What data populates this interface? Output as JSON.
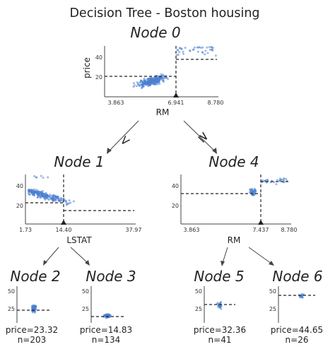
{
  "title": "Decision Tree - Boston housing",
  "edges": {
    "left_label": "<",
    "right_label": "≥"
  },
  "colors": {
    "points": "#4a7fcf",
    "text": "#222222",
    "axis": "#444444"
  },
  "nodes": {
    "n0": {
      "title": "Node 0",
      "feature": "RM",
      "target": "price",
      "x_ticks": [
        "3.863",
        "6.941",
        "8.780"
      ],
      "y_ticks": [
        "20",
        "40"
      ],
      "split_value": 6.941,
      "x_range": [
        3.863,
        8.78
      ],
      "y_range": [
        5,
        50
      ],
      "mean_left": 20,
      "mean_right": 37
    },
    "n1": {
      "title": "Node 1",
      "feature": "LSTAT",
      "x_ticks": [
        "1.73",
        "14.40",
        "37.97"
      ],
      "y_ticks": [
        "20",
        "40"
      ],
      "split_value": 14.4,
      "x_range": [
        1.73,
        37.97
      ],
      "y_range": [
        5,
        50
      ],
      "mean_left": 23,
      "mean_right": 14.8
    },
    "n4": {
      "title": "Node 4",
      "feature": "RM",
      "x_ticks": [
        "3.863",
        "7.437",
        "8.780"
      ],
      "y_ticks": [
        "20",
        "40"
      ],
      "split_value": 7.437,
      "x_range": [
        3.863,
        8.78
      ],
      "y_range": [
        5,
        50
      ],
      "mean_left": 32.4,
      "mean_right": 44.7
    },
    "n2": {
      "title": "Node 2",
      "price_label": "price=23.32",
      "n_label": "n=203",
      "y_ticks": [
        "25",
        "50"
      ],
      "mean": 23.32
    },
    "n3": {
      "title": "Node 3",
      "price_label": "price=14.83",
      "n_label": "n=134",
      "y_ticks": [
        "25",
        "50"
      ],
      "mean": 14.83
    },
    "n5": {
      "title": "Node 5",
      "price_label": "price=32.36",
      "n_label": "n=41",
      "y_ticks": [
        "25",
        "50"
      ],
      "mean": 32.36
    },
    "n6": {
      "title": "Node 6",
      "price_label": "price=44.65",
      "n_label": "n=26",
      "y_ticks": [
        "25",
        "50"
      ],
      "mean": 44.65
    }
  }
}
